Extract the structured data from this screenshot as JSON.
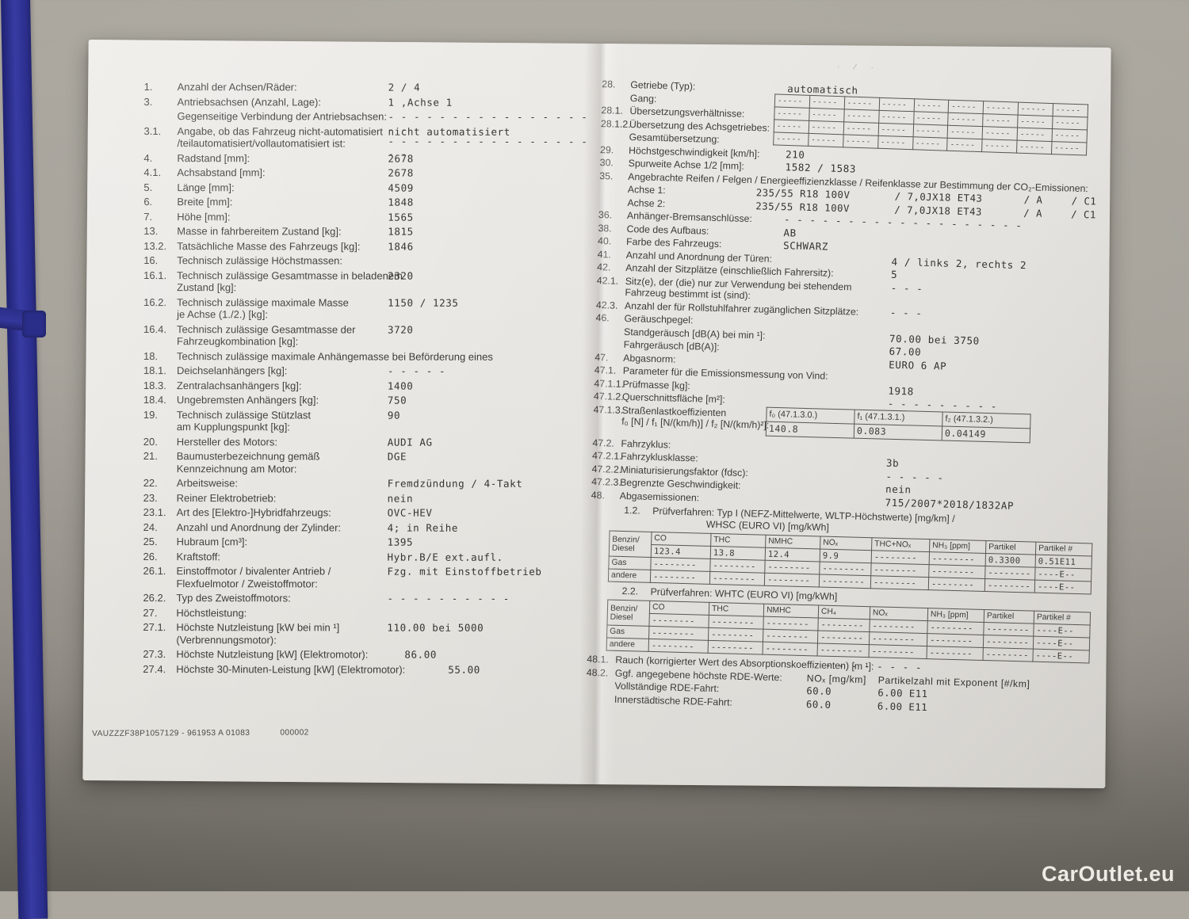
{
  "watermark": {
    "text": "CarOutlet.eu"
  },
  "left_page": {
    "rows": [
      {
        "num": "1.",
        "label": "Anzahl der Achsen/Räder:",
        "value": "2  / 4"
      },
      {
        "num": "3.",
        "label": "Antriebsachsen (Anzahl, Lage):",
        "value": "1 ,Achse 1"
      },
      {
        "num": "",
        "label": "Gegenseitige Verbindung der Antriebsachsen:",
        "value": "- - - - - - - - - - - - - - - - - -\n- - - - - - - - - - - - - - - - - -"
      },
      {
        "num": "3.1.",
        "label": "Angabe, ob das Fahrzeug nicht-automatisiert\n/teilautomatisiert/vollautomatisiert ist:",
        "value": "nicht automatisiert"
      },
      {
        "num": "4.",
        "label": "Radstand [mm]:",
        "value": "2678"
      },
      {
        "num": "4.1.",
        "label": "Achsabstand [mm]:",
        "value": "2678"
      },
      {
        "num": "5.",
        "label": "Länge [mm]:",
        "value": "4509"
      },
      {
        "num": "6.",
        "label": "Breite [mm]:",
        "value": "1848"
      },
      {
        "num": "7.",
        "label": "Höhe [mm]:",
        "value": "1565"
      },
      {
        "num": "13.",
        "label": "Masse in fahrbereitem Zustand [kg]:",
        "value": "1815"
      },
      {
        "num": "13.2.",
        "label": "Tatsächliche Masse des Fahrzeugs [kg]:",
        "value": "1846"
      },
      {
        "num": "16.",
        "label": "Technisch zulässige Höchstmassen:"
      },
      {
        "num": "16.1.",
        "label": "Technisch zulässige Gesamtmasse in beladenem\nZustand [kg]:",
        "value": "2320"
      },
      {
        "num": "16.2.",
        "label": "Technisch zulässige maximale Masse\nje Achse (1./2.) [kg]:",
        "value": "1150  / 1235"
      },
      {
        "num": "16.4.",
        "label": "Technisch zulässige Gesamtmasse der\nFahrzeugkombination [kg]:",
        "value": "3720"
      },
      {
        "num": "18.",
        "label": "Technisch zulässige maximale Anhängemasse bei Beförderung eines",
        "wide": true
      },
      {
        "num": "18.1.",
        "label": "Deichselanhängers [kg]:",
        "value": "- - - - -"
      },
      {
        "num": "18.3.",
        "label": "Zentralachsanhängers [kg]:",
        "value": "1400"
      },
      {
        "num": "18.4.",
        "label": "Ungebremsten Anhängers [kg]:",
        "value": "750"
      },
      {
        "num": "19.",
        "label": "Technisch zulässige Stützlast\nam Kupplungspunkt [kg]:",
        "value": "90"
      },
      {
        "num": "20.",
        "label": "Hersteller des Motors:",
        "value": "AUDI AG"
      },
      {
        "num": "21.",
        "label": "Baumusterbezeichnung gemäß\nKennzeichnung am Motor:",
        "value": "DGE"
      },
      {
        "num": "22.",
        "label": "Arbeitsweise:",
        "value": "Fremdzündung / 4-Takt"
      },
      {
        "num": "23.",
        "label": "Reiner Elektrobetrieb:",
        "value": "nein"
      },
      {
        "num": "23.1.",
        "label": "Art des [Elektro-]Hybridfahrzeugs:",
        "value": "OVC-HEV"
      },
      {
        "num": "24.",
        "label": "Anzahl und Anordnung der Zylinder:",
        "value": "4; in Reihe"
      },
      {
        "num": "25.",
        "label": "Hubraum [cm³]:",
        "value": "1395"
      },
      {
        "num": "26.",
        "label": "Kraftstoff:",
        "value": "Hybr.B/E ext.aufl."
      },
      {
        "num": "26.1.",
        "label": "Einstoffmotor / bivalenter Antrieb /\nFlexfuelmotor / Zweistoffmotor:",
        "value": "Fzg. mit Einstoffbetrieb"
      },
      {
        "num": "26.2.",
        "label": "Typ des Zweistoffmotors:",
        "value": "- - - - - - - - - -"
      },
      {
        "num": "27.",
        "label": "Höchstleistung:"
      },
      {
        "num": "27.1.",
        "label": "Höchste Nutzleistung [kW bei min ¹]\n(Verbrennungsmotor):",
        "value": "110.00  bei 5000"
      },
      {
        "num": "27.3.",
        "label": "Höchste Nutzleistung [kW] (Elektromotor):",
        "value": "86.00",
        "vx": 400
      },
      {
        "num": "27.4.",
        "label": "Höchste 30-Minuten-Leistung [kW] (Elektromotor):",
        "value": "55.00",
        "vx": 455,
        "wide": true
      }
    ],
    "footer_code": "VAUZZZF38P1057129 - 961953 A 01083",
    "footer_num": "000002"
  },
  "right_page": {
    "smudge": "· ⁄ ·",
    "rows": [
      {
        "num": "28.",
        "label": "Getriebe (Typ):",
        "value": "automatisch",
        "col": "a"
      },
      {
        "num": "",
        "label": "Gang:"
      },
      {
        "num": "28.1.",
        "label": "Übersetzungsverhältnisse:"
      },
      {
        "num": "28.1.2.",
        "label": "Übersetzung des Achsgetriebes:"
      },
      {
        "num": "",
        "label": "Gesamtübersetzung:"
      },
      {
        "num": "29.",
        "label": "Höchstgeschwindigkeit [km/h]:",
        "value": "210",
        "col": "a"
      },
      {
        "num": "30.",
        "label": "Spurweite Achse 1/2 [mm]:",
        "value": "1582  / 1583",
        "col": "a"
      },
      {
        "num": "35.",
        "label": "Angebrachte Reifen / Felgen / Energieeffizienzklasse / Reifenklasse zur Bestimmung der CO₂-Emissionen:",
        "wide": true
      },
      {
        "type": "tire",
        "label": "Achse 1:",
        "p1": "235/55 R18 100V",
        "p2": "/ 7,0JX18 ET43",
        "p3": "/ A",
        "p4": "/ C1"
      },
      {
        "type": "tire",
        "label": "Achse 2:",
        "p1": "235/55 R18 100V",
        "p2": "/ 7,0JX18 ET43",
        "p3": "/ A",
        "p4": "/ C1"
      },
      {
        "num": "36.",
        "label": "Anhänger-Bremsanschlüsse:",
        "value": "- - - - - - - - - - - - - - - - - - -",
        "col": "a"
      },
      {
        "num": "38.",
        "label": "Code des Aufbaus:",
        "value": "AB",
        "col": "a"
      },
      {
        "num": "40.",
        "label": "Farbe des Fahrzeugs:",
        "value": "SCHWARZ",
        "col": "a"
      },
      {
        "num": "41.",
        "label": "Anzahl und Anordnung der Türen:",
        "value": "4   / links 2, rechts 2",
        "col": "b"
      },
      {
        "num": "42.",
        "label": "Anzahl der Sitzplätze (einschließlich Fahrersitz):",
        "value": "5",
        "col": "b"
      },
      {
        "num": "42.1.",
        "label": "Sitz(e), der (die) nur zur Verwendung bei stehendem\nFahrzeug bestimmt ist (sind):",
        "value": "- - -",
        "col": "b"
      },
      {
        "num": "42.3.",
        "label": "Anzahl der für Rollstuhlfahrer zugänglichen Sitzplätze:",
        "value": "- - -",
        "col": "b"
      },
      {
        "num": "46.",
        "label": "Geräuschpegel:"
      },
      {
        "num": "",
        "label": "Standgeräusch [dB(A) bei min ¹]:",
        "value": "70.00  bei 3750",
        "col": "b"
      },
      {
        "num": "",
        "label": "Fahrgeräusch [dB(A)]:",
        "value": "67.00",
        "col": "b"
      },
      {
        "num": "47.",
        "label": "Abgasnorm:",
        "value": "EURO 6 AP",
        "col": "b"
      },
      {
        "num": "47.1.",
        "label": "Parameter für die Emissionsmessung von Vind:"
      },
      {
        "num": "47.1.1.",
        "label": "Prüfmasse [kg]:",
        "value": "1918",
        "col": "b"
      },
      {
        "num": "47.1.2.",
        "label": "Querschnittsfläche [m²]:",
        "value": "- - - - - - - - -",
        "col": "b"
      },
      {
        "type": "coef",
        "num": "47.1.3.",
        "label": "Straßenlastkoeffizienten\nf₀ [N] / f₁ [N/(km/h)] / f₂ [N/(km/h)²]:"
      },
      {
        "num": "47.2.",
        "label": "Fahrzyklus:"
      },
      {
        "num": "47.2.1.",
        "label": "Fahrzyklusklasse:",
        "value": "3b",
        "col": "b"
      },
      {
        "num": "47.2.2.",
        "label": "Miniaturisierungsfaktor (fdsc):",
        "value": "- - - - -",
        "col": "b"
      },
      {
        "num": "47.2.3.",
        "label": "Begrenzte Geschwindigkeit:",
        "value": "nein",
        "col": "b"
      },
      {
        "num": "48.",
        "label": "Abgasemissionen:",
        "value": "715/2007*2018/1832AP",
        "col": "b"
      }
    ],
    "gear_table": {
      "rows": [
        [
          "-----",
          "-----",
          "-----",
          "-----",
          "-----",
          "-----",
          "-----",
          "-----",
          "-----"
        ],
        [
          "-----",
          "-----",
          "-----",
          "-----",
          "-----",
          "-----",
          "-----",
          "-----",
          "-----"
        ],
        [
          "-----",
          "-----",
          "-----",
          "-----",
          "-----",
          "-----",
          "-----",
          "-----",
          "-----"
        ],
        [
          "-----",
          "-----",
          "-----",
          "-----",
          "-----",
          "-----",
          "-----",
          "-----",
          "-----"
        ]
      ]
    },
    "coef": {
      "headers": [
        "f₀ (47.1.3.0.)",
        "f₁ (47.1.3.1.)",
        "f₂ (47.1.3.2.)"
      ],
      "values": [
        "140.8",
        "0.083",
        "0.04149"
      ]
    },
    "pruef1": {
      "num": "1.2.",
      "line1": "Prüfverfahren: Typ I (NEFZ-Mittelwerte, WLTP-Höchstwerte) [mg/km] /",
      "line2": "WHSC (EURO VI) [mg/kWh]"
    },
    "pruef2": {
      "num": "2.2.",
      "line1": "Prüfverfahren: WHTC (EURO VI) [mg/kWh]"
    },
    "emis1": {
      "rh_top": "Benzin/",
      "rh_bottom": "Diesel",
      "rh_gas": "Gas",
      "rh_andere": "andere",
      "columns": [
        "CO",
        "THC",
        "NMHC",
        "NOₓ",
        "THC+NOₓ",
        "NH₃ [ppm]",
        "Partikel",
        "Partikel #"
      ],
      "benzin": [
        "123.4",
        "13.8",
        "12.4",
        "9.9",
        "--------",
        "--------",
        "0.3300",
        "0.51E11"
      ],
      "gas": [
        "--------",
        "--------",
        "--------",
        "--------",
        "--------",
        "--------",
        "--------",
        "----E--"
      ],
      "andere": [
        "--------",
        "--------",
        "--------",
        "--------",
        "--------",
        "--------",
        "--------",
        "----E--"
      ]
    },
    "emis2": {
      "rh_top": "Benzin/",
      "rh_bottom": "Diesel",
      "rh_gas": "Gas",
      "rh_andere": "andere",
      "columns": [
        "CO",
        "THC",
        "NMHC",
        "CH₄",
        "NOₓ",
        "NH₃ [ppm]",
        "Partikel",
        "Partikel #"
      ],
      "benzin": [
        "--------",
        "--------",
        "--------",
        "--------",
        "--------",
        "--------",
        "--------",
        "----E--"
      ],
      "gas": [
        "--------",
        "--------",
        "--------",
        "--------",
        "--------",
        "--------",
        "--------",
        "----E--"
      ],
      "andere": [
        "--------",
        "--------",
        "--------",
        "--------",
        "--------",
        "--------",
        "--------",
        "----E--"
      ]
    },
    "rows2": [
      {
        "num": "48.1.",
        "label": "Rauch (korrigierter Wert des Absorptionskoeffizienten) [m ¹]:",
        "value": "- - - - - - - -",
        "col": "c",
        "wide": true
      },
      {
        "num": "48.2.",
        "label": "Ggf. angegebene höchste RDE-Werte:",
        "type": "rdehead"
      }
    ],
    "rde": {
      "col1": "NOₓ [mg/km]",
      "col2": "Partikelzahl mit Exponent [#/km]",
      "rows": [
        {
          "label": "Vollständige RDE-Fahrt:",
          "v1": "60.0",
          "v2": "6.00 E11"
        },
        {
          "label": "Innerstädtische RDE-Fahrt:",
          "v1": "60.0",
          "v2": "6.00 E11"
        }
      ]
    }
  }
}
